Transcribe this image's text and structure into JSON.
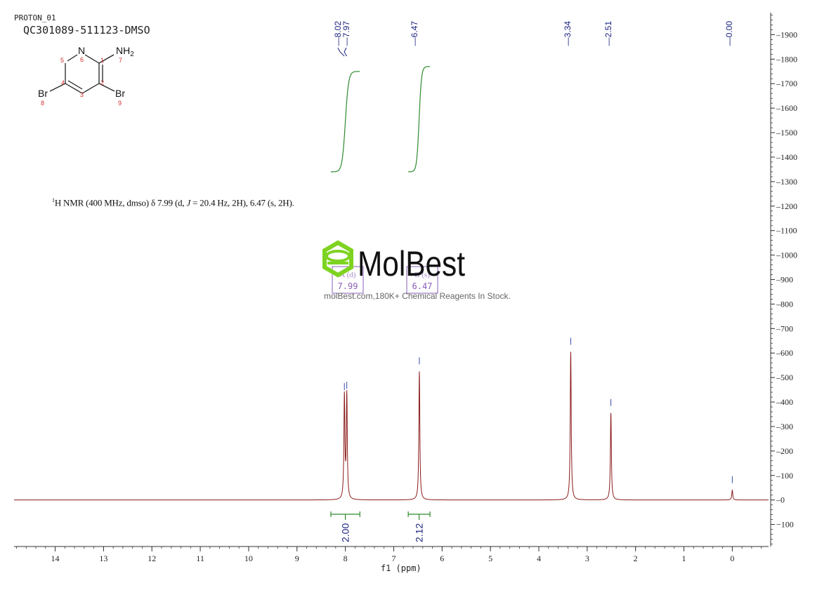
{
  "header": {
    "experiment": "PROTON_01",
    "sample_id": "QC301089-511123-DMSO"
  },
  "molecule": {
    "atoms": [
      {
        "symbol": "N",
        "index": "6"
      },
      {
        "symbol": "NH2",
        "index": "7"
      },
      {
        "symbol": "Br",
        "index": "8"
      },
      {
        "symbol": "Br",
        "index": "9"
      }
    ],
    "ring_numbers": [
      "1",
      "2",
      "3",
      "4",
      "5"
    ]
  },
  "summary": {
    "nucleus_sup": "1",
    "text_a": "H NMR (400 MHz, dmso) δ 7.99 (d, ",
    "j_symbol": "J",
    "text_b": " = 20.4 Hz, 2H), 6.47 (s, 2H)."
  },
  "watermark": {
    "brand": "MolBest",
    "tagline": "molBest.com,180K+ Chemical Reagents In Stock."
  },
  "chart_data": {
    "type": "line",
    "xlabel": "f1  (ppm)",
    "xlim": [
      14.85,
      -0.75
    ],
    "ylim": [
      -190,
      1990
    ],
    "x_ticks": [
      14,
      13,
      12,
      11,
      10,
      9,
      8,
      7,
      6,
      5,
      4,
      3,
      2,
      1,
      0
    ],
    "y_ticks": [
      -100,
      0,
      100,
      200,
      300,
      400,
      500,
      600,
      700,
      800,
      900,
      1000,
      1100,
      1200,
      1300,
      1400,
      1500,
      1600,
      1700,
      1800,
      1900
    ],
    "x_tick_labels": [
      "14",
      "13",
      "12",
      "11",
      "10",
      "9",
      "8",
      "7",
      "6",
      "5",
      "4",
      "3",
      "2",
      "1",
      "0"
    ],
    "y_tick_labels": [
      "-100",
      "0",
      "100",
      "200",
      "300",
      "400",
      "500",
      "600",
      "700",
      "800",
      "900",
      "1000",
      "1100",
      "1200",
      "1300",
      "1400",
      "1500",
      "1600",
      "1700",
      "1800",
      "1900"
    ],
    "peaks": [
      {
        "ppm": 8.02,
        "height": 420
      },
      {
        "ppm": 7.97,
        "height": 425
      },
      {
        "ppm": 6.47,
        "height": 525
      },
      {
        "ppm": 3.34,
        "height": 605
      },
      {
        "ppm": 2.51,
        "height": 355
      },
      {
        "ppm": 0.0,
        "height": 40
      }
    ],
    "peak_labels": [
      "8.02",
      "7.97",
      "6.47",
      "3.34",
      "2.51",
      "0.00"
    ],
    "integrals": [
      {
        "from": 8.3,
        "to": 7.7,
        "value": "2.00",
        "curve_from": 1340,
        "curve_to": 1750
      },
      {
        "from": 6.7,
        "to": 6.25,
        "value": "2.12",
        "curve_from": 1340,
        "curve_to": 1770
      }
    ],
    "multiplets": [
      {
        "name": "A (d)",
        "shift": "7.99"
      },
      {
        "name": "B (s)",
        "shift": "6.47"
      }
    ],
    "colors": {
      "spectrum": "#8b1a1a",
      "integral": "#2e8b2e",
      "peak_label": "#1a237e",
      "multiplet_box": "#8a5fb8",
      "axis": "#333333",
      "watermark_green": "#7ed321"
    }
  }
}
